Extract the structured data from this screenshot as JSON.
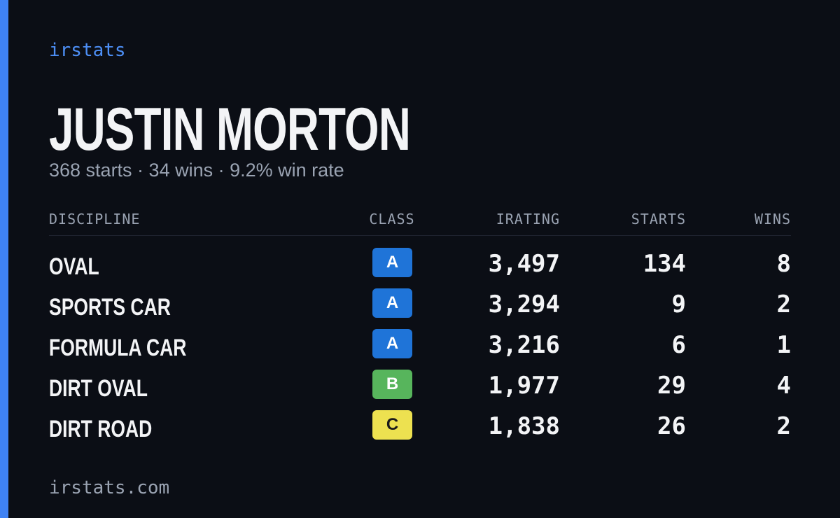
{
  "brand": "irstats",
  "driver": {
    "name": "JUSTIN MORTON",
    "summary": "368 starts · 34 wins · 9.2% win rate"
  },
  "table": {
    "columns": [
      "DISCIPLINE",
      "CLASS",
      "IRATING",
      "STARTS",
      "WINS"
    ],
    "rows": [
      {
        "discipline": "OVAL",
        "class": "A",
        "class_color": "#1f74d8",
        "class_text_color": "#ffffff",
        "irating": "3,497",
        "starts": "134",
        "wins": "8"
      },
      {
        "discipline": "SPORTS CAR",
        "class": "A",
        "class_color": "#1f74d8",
        "class_text_color": "#ffffff",
        "irating": "3,294",
        "starts": "9",
        "wins": "2"
      },
      {
        "discipline": "FORMULA CAR",
        "class": "A",
        "class_color": "#1f74d8",
        "class_text_color": "#ffffff",
        "irating": "3,216",
        "starts": "6",
        "wins": "1"
      },
      {
        "discipline": "DIRT OVAL",
        "class": "B",
        "class_color": "#57b55c",
        "class_text_color": "#ffffff",
        "irating": "1,977",
        "starts": "29",
        "wins": "4"
      },
      {
        "discipline": "DIRT ROAD",
        "class": "C",
        "class_color": "#ede150",
        "class_text_color": "#1a1a1a",
        "irating": "1,838",
        "starts": "26",
        "wins": "2"
      }
    ]
  },
  "footer": "irstats.com"
}
